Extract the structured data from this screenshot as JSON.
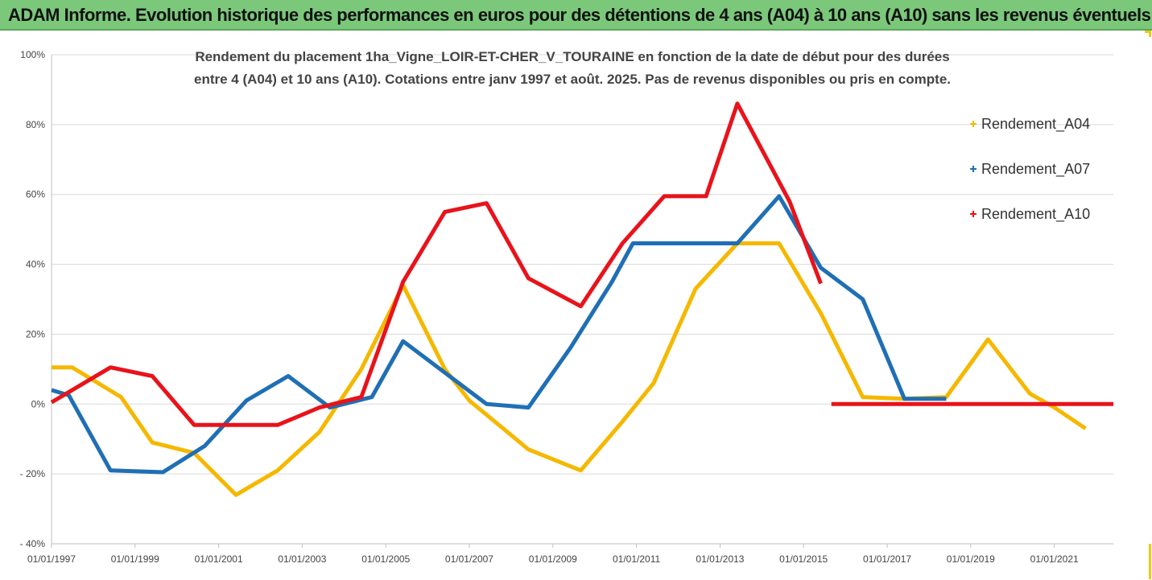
{
  "header": {
    "title": "ADAM Informe. Evolution historique des performances en euros pour des détentions de 4 ans (A04) à 10 ans (A10) sans les revenus éventuels"
  },
  "colors": {
    "header_bg": "#7bc87b",
    "frame_accent": "#f2c811",
    "grid": "#d9d9d9"
  },
  "chart_data": {
    "type": "line",
    "title_lines": [
      "Rendement du placement 1ha_Vigne_LOIR-ET-CHER_V_TOURAINE en fonction de la date de début pour des durées",
      "entre 4 (A04) et 10 ans (A10). Cotations entre janv 1997 et août. 2025. Pas de revenus disponibles ou pris en compte."
    ],
    "xlabel": "",
    "ylabel": "",
    "x_range": [
      "1997-01-01",
      "2022-06-01"
    ],
    "x_ticks": [
      "01/01/1997",
      "01/01/1999",
      "01/01/2001",
      "01/01/2003",
      "01/01/2005",
      "01/01/2007",
      "01/01/2009",
      "01/01/2011",
      "01/01/2013",
      "01/01/2015",
      "01/01/2017",
      "01/01/2019",
      "01/01/2021"
    ],
    "ylim": [
      -40,
      100
    ],
    "y_ticks": [
      -40,
      -20,
      0,
      20,
      40,
      60,
      80,
      100
    ],
    "y_tick_labels": [
      "- 40%",
      "- 20%",
      "0%",
      "20%",
      "40%",
      "60%",
      "80%",
      "100%"
    ],
    "grid": "horizontal",
    "legend_position": "right",
    "series": [
      {
        "name": "Rendement_A04",
        "color": "#f5b800",
        "points": [
          [
            "1997-01-01",
            10.5
          ],
          [
            "1997-07-01",
            10.5
          ],
          [
            "1998-09-01",
            2
          ],
          [
            "1999-06-01",
            -11
          ],
          [
            "2000-06-01",
            -14
          ],
          [
            "2001-06-01",
            -26
          ],
          [
            "2002-06-01",
            -19
          ],
          [
            "2003-06-01",
            -8
          ],
          [
            "2004-06-01",
            10
          ],
          [
            "2005-06-01",
            34
          ],
          [
            "2006-06-01",
            10
          ],
          [
            "2007-01-01",
            1
          ],
          [
            "2008-06-01",
            -13
          ],
          [
            "2009-09-01",
            -19
          ],
          [
            "2010-09-01",
            -5
          ],
          [
            "2011-06-01",
            6
          ],
          [
            "2012-06-01",
            33
          ],
          [
            "2013-06-01",
            46
          ],
          [
            "2014-06-01",
            46
          ],
          [
            "2015-06-01",
            26
          ],
          [
            "2016-06-01",
            2
          ],
          [
            "2017-06-01",
            1.5
          ],
          [
            "2018-06-01",
            2
          ],
          [
            "2019-06-01",
            18.5
          ],
          [
            "2020-06-01",
            3
          ],
          [
            "2021-01-01",
            -1
          ],
          [
            "2021-10-01",
            -7
          ]
        ]
      },
      {
        "name": "Rendement_A07",
        "color": "#1f6fb5",
        "points": [
          [
            "1997-01-01",
            4
          ],
          [
            "1997-06-01",
            2.5
          ],
          [
            "1998-06-01",
            -19
          ],
          [
            "1999-09-01",
            -19.5
          ],
          [
            "2000-09-01",
            -12
          ],
          [
            "2001-09-01",
            1
          ],
          [
            "2002-09-01",
            8
          ],
          [
            "2003-09-01",
            -1
          ],
          [
            "2004-09-01",
            2
          ],
          [
            "2005-06-01",
            18
          ],
          [
            "2006-06-01",
            9
          ],
          [
            "2007-06-01",
            0
          ],
          [
            "2008-06-01",
            -1
          ],
          [
            "2009-06-01",
            16
          ],
          [
            "2010-06-01",
            35
          ],
          [
            "2010-12-01",
            46
          ],
          [
            "2013-06-01",
            46
          ],
          [
            "2014-06-01",
            59.5
          ],
          [
            "2015-06-01",
            39
          ],
          [
            "2016-06-01",
            30
          ],
          [
            "2017-06-01",
            1.5
          ],
          [
            "2018-06-01",
            1.5
          ]
        ]
      },
      {
        "name": "Rendement_A10",
        "color": "#e8131b",
        "points": [
          [
            "1997-01-01",
            0.5
          ],
          [
            "1998-06-01",
            10.5
          ],
          [
            "1999-06-01",
            8
          ],
          [
            "2000-06-01",
            -6
          ],
          [
            "2002-06-01",
            -6
          ],
          [
            "2003-06-01",
            -1
          ],
          [
            "2004-06-01",
            2
          ],
          [
            "2005-06-01",
            35
          ],
          [
            "2006-06-01",
            55
          ],
          [
            "2007-06-01",
            57.5
          ],
          [
            "2008-06-01",
            36
          ],
          [
            "2009-09-01",
            28
          ],
          [
            "2010-09-01",
            46
          ],
          [
            "2011-09-01",
            59.5
          ],
          [
            "2012-09-01",
            59.5
          ],
          [
            "2013-06-01",
            86
          ],
          [
            "2014-09-01",
            58
          ],
          [
            "2015-06-01",
            34.5
          ],
          null,
          [
            "2015-09-01",
            0
          ],
          [
            "2022-06-01",
            0
          ]
        ]
      }
    ]
  }
}
